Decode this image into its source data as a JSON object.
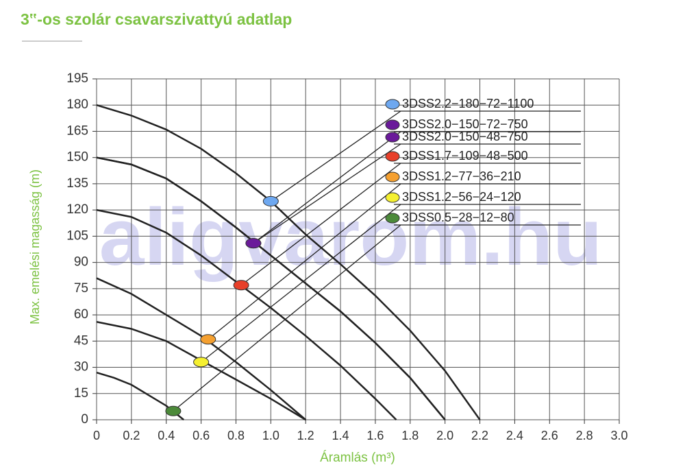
{
  "chart_data": {
    "type": "line",
    "title": "3‟-os szolár csavarszivattyú adatlap",
    "watermark": "aligvarom.hu",
    "x_label": "Áramlás (m³)",
    "y_label": "Max. emelési magasság (m)",
    "xlim": [
      0,
      3
    ],
    "xticks": [
      0,
      0.2,
      0.4,
      0.6,
      0.8,
      {
        "value": 1,
        "label": "1.0"
      },
      1.2,
      1.4,
      1.6,
      1.8,
      {
        "value": 2,
        "label": "2.0"
      },
      2.2,
      2.4,
      2.6,
      2.8,
      {
        "value": 3,
        "label": "3.0"
      }
    ],
    "ylim": [
      0,
      195
    ],
    "yticks": [
      0,
      15,
      30,
      45,
      60,
      75,
      90,
      105,
      120,
      135,
      150,
      165,
      180,
      195
    ],
    "grid": true,
    "series": [
      {
        "name": "3DSS2.2−180−72−1100",
        "color": "#6ea8f0",
        "x": [
          0,
          0.2,
          0.4,
          0.6,
          0.8,
          1.0,
          1.2,
          1.4,
          1.6,
          1.8,
          2.0,
          2.2
        ],
        "values": [
          180,
          174,
          166,
          155,
          141,
          125,
          106,
          89,
          71,
          51,
          28,
          0
        ],
        "point_x": 1.0,
        "point_y": 125
      },
      {
        "name": "3DSS2.0−150−72−750",
        "color": "#6a1a9a",
        "x": [
          0,
          0.2,
          0.4,
          0.6,
          0.8,
          1.0,
          1.2,
          1.4,
          1.6,
          1.8,
          2.0
        ],
        "values": [
          150,
          146,
          138,
          125,
          110,
          94,
          78,
          62,
          44,
          24,
          0
        ],
        "point_x": 0.9,
        "point_y": 101
      },
      {
        "name": "3DSS2.0−150−48−750",
        "color": "#6a1a9a",
        "x": [
          0,
          0.2,
          0.4,
          0.6,
          0.8,
          1.0,
          1.2,
          1.4,
          1.6,
          1.8,
          2.0
        ],
        "values": [
          150,
          146,
          138,
          125,
          110,
          94,
          78,
          62,
          44,
          24,
          0
        ],
        "point_x": 0.9,
        "point_y": 101
      },
      {
        "name": "3DSS1.7−109−48−500",
        "color": "#e8402a",
        "x": [
          0,
          0.2,
          0.4,
          0.6,
          0.8,
          1.0,
          1.2,
          1.4,
          1.6,
          1.72
        ],
        "values": [
          120,
          116,
          107,
          94,
          79,
          64,
          48,
          31,
          12,
          0
        ],
        "point_x": 0.83,
        "point_y": 77
      },
      {
        "name": "3DSS1.2−77−36−210",
        "color": "#f5a030",
        "x": [
          0,
          0.2,
          0.4,
          0.6,
          0.8,
          1.0,
          1.2
        ],
        "values": [
          81,
          72,
          60,
          48,
          33,
          17,
          0
        ],
        "point_x": 0.64,
        "point_y": 46
      },
      {
        "name": "3DSS1.2−56−24−120",
        "color": "#f5f030",
        "x": [
          0,
          0.2,
          0.4,
          0.6,
          0.8,
          1.0,
          1.2
        ],
        "values": [
          56,
          52,
          45,
          34,
          23,
          12,
          0
        ],
        "point_x": 0.6,
        "point_y": 33
      },
      {
        "name": "3DSS0.5−28−12−80",
        "color": "#4c8a3a",
        "x": [
          0,
          0.1,
          0.2,
          0.3,
          0.4,
          0.5
        ],
        "values": [
          27,
          24,
          20,
          14,
          8,
          0
        ],
        "point_x": 0.44,
        "point_y": 5
      }
    ]
  }
}
